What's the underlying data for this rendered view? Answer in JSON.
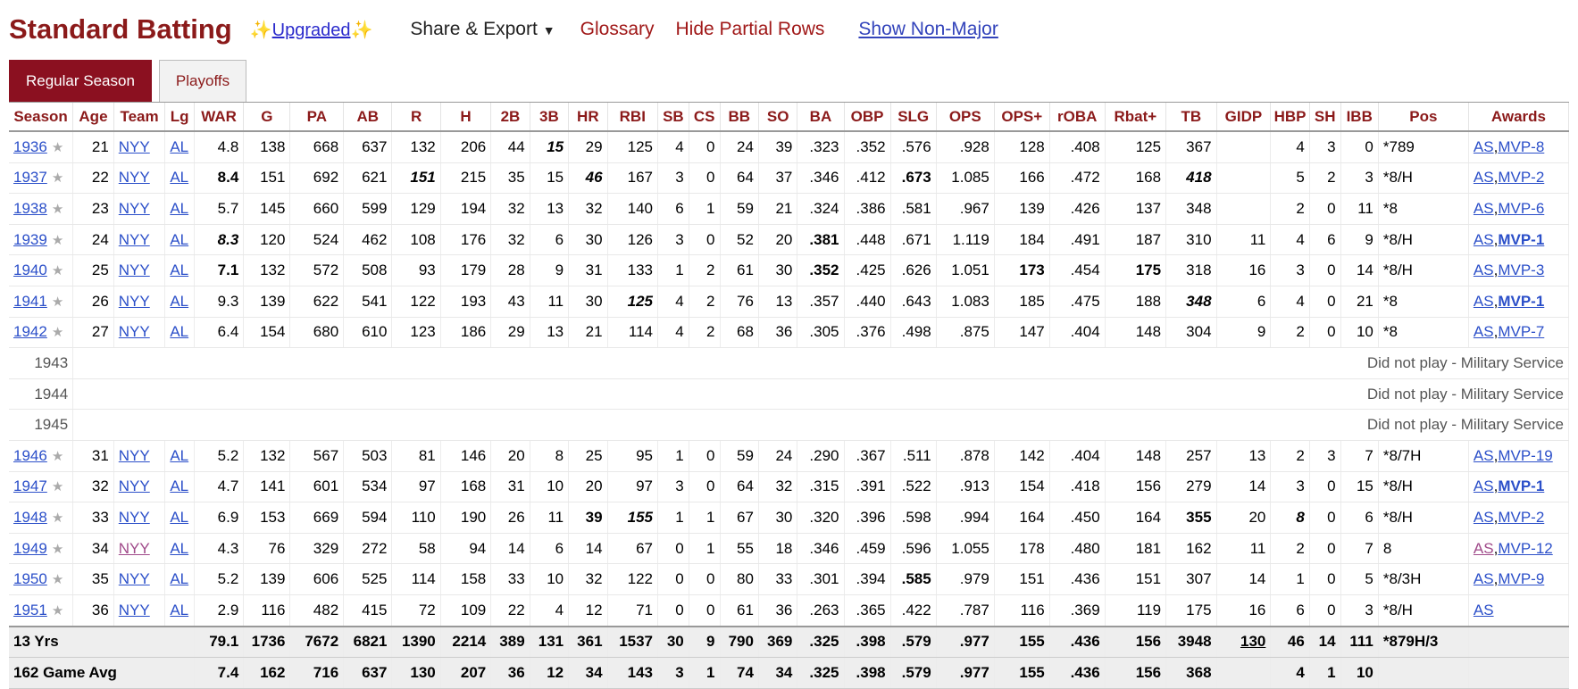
{
  "header": {
    "title": "Standard Batting",
    "upgraded": "Upgraded",
    "share_export": "Share & Export",
    "glossary": "Glossary",
    "hide_partial": "Hide Partial Rows",
    "show_non_major": "Show Non-Major"
  },
  "tabs": [
    {
      "label": "Regular Season",
      "active": true
    },
    {
      "label": "Playoffs",
      "active": false
    }
  ],
  "columns": [
    "Season",
    "Age",
    "Team",
    "Lg",
    "WAR",
    "G",
    "PA",
    "AB",
    "R",
    "H",
    "2B",
    "3B",
    "HR",
    "RBI",
    "SB",
    "CS",
    "BB",
    "SO",
    "BA",
    "OBP",
    "SLG",
    "OPS",
    "OPS+",
    "rOBA",
    "Rbat+",
    "TB",
    "GIDP",
    "HBP",
    "SH",
    "IBB",
    "Pos",
    "Awards"
  ],
  "rows": [
    {
      "type": "season",
      "season": "1936",
      "age": "21",
      "team": "NYY",
      "lg": "AL",
      "cells": [
        "4.8",
        "138",
        "668",
        "637",
        "132",
        "206",
        "44",
        "15",
        "29",
        "125",
        "4",
        "0",
        "24",
        "39",
        ".323",
        ".352",
        ".576",
        ".928",
        "128",
        ".408",
        "125",
        "367",
        "",
        "4",
        "3",
        "0"
      ],
      "pos": "*789",
      "awards": [
        {
          "text": "AS"
        },
        {
          "text": "MVP-8"
        }
      ],
      "style": {
        "3B": "bi"
      }
    },
    {
      "type": "season",
      "season": "1937",
      "age": "22",
      "team": "NYY",
      "lg": "AL",
      "cells": [
        "8.4",
        "151",
        "692",
        "621",
        "151",
        "215",
        "35",
        "15",
        "46",
        "167",
        "3",
        "0",
        "64",
        "37",
        ".346",
        ".412",
        ".673",
        "1.085",
        "166",
        ".472",
        "168",
        "418",
        "",
        "5",
        "2",
        "3"
      ],
      "pos": "*8/H",
      "awards": [
        {
          "text": "AS"
        },
        {
          "text": "MVP-2"
        }
      ],
      "style": {
        "WAR": "b",
        "R": "bi",
        "HR": "bi",
        "SLG": "b",
        "TB": "bi"
      }
    },
    {
      "type": "season",
      "season": "1938",
      "age": "23",
      "team": "NYY",
      "lg": "AL",
      "cells": [
        "5.7",
        "145",
        "660",
        "599",
        "129",
        "194",
        "32",
        "13",
        "32",
        "140",
        "6",
        "1",
        "59",
        "21",
        ".324",
        ".386",
        ".581",
        ".967",
        "139",
        ".426",
        "137",
        "348",
        "",
        "2",
        "0",
        "11"
      ],
      "pos": "*8",
      "awards": [
        {
          "text": "AS"
        },
        {
          "text": "MVP-6"
        }
      ],
      "style": {}
    },
    {
      "type": "season",
      "season": "1939",
      "age": "24",
      "team": "NYY",
      "lg": "AL",
      "cells": [
        "8.3",
        "120",
        "524",
        "462",
        "108",
        "176",
        "32",
        "6",
        "30",
        "126",
        "3",
        "0",
        "52",
        "20",
        ".381",
        ".448",
        ".671",
        "1.119",
        "184",
        ".491",
        "187",
        "310",
        "11",
        "4",
        "6",
        "9"
      ],
      "pos": "*8/H",
      "awards": [
        {
          "text": "AS"
        },
        {
          "text": "MVP-1",
          "bold": true
        }
      ],
      "style": {
        "WAR": "bi",
        "BA": "b"
      }
    },
    {
      "type": "season",
      "season": "1940",
      "age": "25",
      "team": "NYY",
      "lg": "AL",
      "cells": [
        "7.1",
        "132",
        "572",
        "508",
        "93",
        "179",
        "28",
        "9",
        "31",
        "133",
        "1",
        "2",
        "61",
        "30",
        ".352",
        ".425",
        ".626",
        "1.051",
        "173",
        ".454",
        "175",
        "318",
        "16",
        "3",
        "0",
        "14"
      ],
      "pos": "*8/H",
      "awards": [
        {
          "text": "AS"
        },
        {
          "text": "MVP-3"
        }
      ],
      "style": {
        "WAR": "b",
        "BA": "b",
        "OPS+": "b",
        "Rbat+": "b"
      }
    },
    {
      "type": "season",
      "season": "1941",
      "age": "26",
      "team": "NYY",
      "lg": "AL",
      "cells": [
        "9.3",
        "139",
        "622",
        "541",
        "122",
        "193",
        "43",
        "11",
        "30",
        "125",
        "4",
        "2",
        "76",
        "13",
        ".357",
        ".440",
        ".643",
        "1.083",
        "185",
        ".475",
        "188",
        "348",
        "6",
        "4",
        "0",
        "21"
      ],
      "pos": "*8",
      "awards": [
        {
          "text": "AS"
        },
        {
          "text": "MVP-1",
          "bold": true
        }
      ],
      "style": {
        "RBI": "bi",
        "TB": "bi"
      }
    },
    {
      "type": "season",
      "season": "1942",
      "age": "27",
      "team": "NYY",
      "lg": "AL",
      "cells": [
        "6.4",
        "154",
        "680",
        "610",
        "123",
        "186",
        "29",
        "13",
        "21",
        "114",
        "4",
        "2",
        "68",
        "36",
        ".305",
        ".376",
        ".498",
        ".875",
        "147",
        ".404",
        "148",
        "304",
        "9",
        "2",
        "0",
        "10"
      ],
      "pos": "*8",
      "awards": [
        {
          "text": "AS"
        },
        {
          "text": "MVP-7"
        }
      ],
      "style": {}
    },
    {
      "type": "military",
      "season": "1943",
      "note": "Did not play - Military Service"
    },
    {
      "type": "military",
      "season": "1944",
      "note": "Did not play - Military Service"
    },
    {
      "type": "military",
      "season": "1945",
      "note": "Did not play - Military Service"
    },
    {
      "type": "season",
      "season": "1946",
      "age": "31",
      "team": "NYY",
      "lg": "AL",
      "cells": [
        "5.2",
        "132",
        "567",
        "503",
        "81",
        "146",
        "20",
        "8",
        "25",
        "95",
        "1",
        "0",
        "59",
        "24",
        ".290",
        ".367",
        ".511",
        ".878",
        "142",
        ".404",
        "148",
        "257",
        "13",
        "2",
        "3",
        "7"
      ],
      "pos": "*8/7H",
      "awards": [
        {
          "text": "AS"
        },
        {
          "text": "MVP-19"
        }
      ],
      "style": {}
    },
    {
      "type": "season",
      "season": "1947",
      "age": "32",
      "team": "NYY",
      "lg": "AL",
      "cells": [
        "4.7",
        "141",
        "601",
        "534",
        "97",
        "168",
        "31",
        "10",
        "20",
        "97",
        "3",
        "0",
        "64",
        "32",
        ".315",
        ".391",
        ".522",
        ".913",
        "154",
        ".418",
        "156",
        "279",
        "14",
        "3",
        "0",
        "15"
      ],
      "pos": "*8/H",
      "awards": [
        {
          "text": "AS"
        },
        {
          "text": "MVP-1",
          "bold": true
        }
      ],
      "style": {}
    },
    {
      "type": "season",
      "season": "1948",
      "age": "33",
      "team": "NYY",
      "lg": "AL",
      "cells": [
        "6.9",
        "153",
        "669",
        "594",
        "110",
        "190",
        "26",
        "11",
        "39",
        "155",
        "1",
        "1",
        "67",
        "30",
        ".320",
        ".396",
        ".598",
        ".994",
        "164",
        ".450",
        "164",
        "355",
        "20",
        "8",
        "0",
        "6"
      ],
      "pos": "*8/H",
      "awards": [
        {
          "text": "AS"
        },
        {
          "text": "MVP-2"
        }
      ],
      "style": {
        "HR": "b",
        "RBI": "bi",
        "TB": "b",
        "HBP": "bi"
      }
    },
    {
      "type": "season",
      "season": "1949",
      "age": "34",
      "team": "NYY",
      "lg": "AL",
      "cells": [
        "4.3",
        "76",
        "329",
        "272",
        "58",
        "94",
        "14",
        "6",
        "14",
        "67",
        "0",
        "1",
        "55",
        "18",
        ".346",
        ".459",
        ".596",
        "1.055",
        "178",
        ".480",
        "181",
        "162",
        "11",
        "2",
        "0",
        "7"
      ],
      "pos": "8",
      "awards": [
        {
          "text": "AS",
          "visited": true
        },
        {
          "text": "MVP-12"
        }
      ],
      "visited_team": true,
      "style": {}
    },
    {
      "type": "season",
      "season": "1950",
      "age": "35",
      "team": "NYY",
      "lg": "AL",
      "cells": [
        "5.2",
        "139",
        "606",
        "525",
        "114",
        "158",
        "33",
        "10",
        "32",
        "122",
        "0",
        "0",
        "80",
        "33",
        ".301",
        ".394",
        ".585",
        ".979",
        "151",
        ".436",
        "151",
        "307",
        "14",
        "1",
        "0",
        "5"
      ],
      "pos": "*8/3H",
      "awards": [
        {
          "text": "AS"
        },
        {
          "text": "MVP-9"
        }
      ],
      "style": {
        "SLG": "b"
      }
    },
    {
      "type": "season",
      "season": "1951",
      "age": "36",
      "team": "NYY",
      "lg": "AL",
      "cells": [
        "2.9",
        "116",
        "482",
        "415",
        "72",
        "109",
        "22",
        "4",
        "12",
        "71",
        "0",
        "0",
        "61",
        "36",
        ".263",
        ".365",
        ".422",
        ".787",
        "116",
        ".369",
        "119",
        "175",
        "16",
        "6",
        "0",
        "3"
      ],
      "pos": "*8/H",
      "awards": [
        {
          "text": "AS"
        }
      ],
      "style": {}
    }
  ],
  "footer": [
    {
      "label": "13 Yrs",
      "cells": [
        "79.1",
        "1736",
        "7672",
        "6821",
        "1390",
        "2214",
        "389",
        "131",
        "361",
        "1537",
        "30",
        "9",
        "790",
        "369",
        ".325",
        ".398",
        ".579",
        ".977",
        "155",
        ".436",
        "156",
        "3948",
        "130",
        "46",
        "14",
        "111"
      ],
      "pos": "*879H/3",
      "underline": "GIDP"
    },
    {
      "label": "162 Game Avg",
      "cells": [
        "7.4",
        "162",
        "716",
        "637",
        "130",
        "207",
        "36",
        "12",
        "34",
        "143",
        "3",
        "1",
        "74",
        "34",
        ".325",
        ".398",
        ".579",
        ".977",
        "155",
        ".436",
        "156",
        "368",
        "",
        "4",
        "1",
        "10"
      ],
      "pos": ""
    }
  ]
}
